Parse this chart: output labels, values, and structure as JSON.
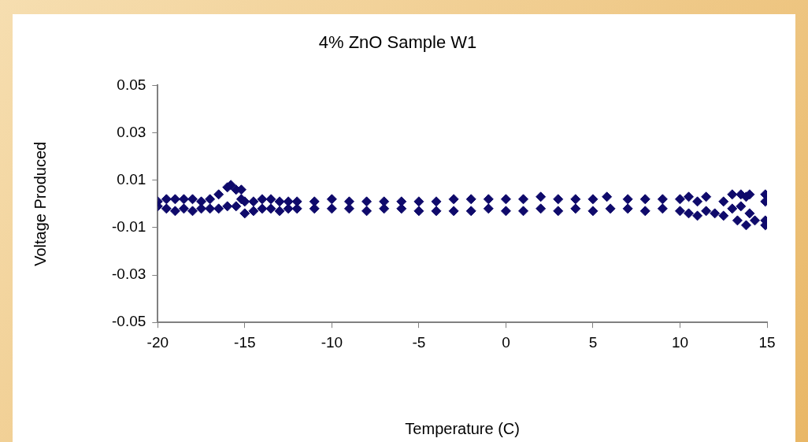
{
  "chart_data": {
    "type": "scatter",
    "title": "4% ZnO Sample W1",
    "xlabel": "Temperature (C)",
    "ylabel": "Voltage Produced",
    "xlim": [
      -20,
      15
    ],
    "xticks": [
      -20,
      -15,
      -10,
      -5,
      0,
      5,
      10,
      15
    ],
    "ylim": [
      -0.05,
      0.05
    ],
    "yticks": [
      -0.05,
      -0.03,
      -0.01,
      0.01,
      0.03,
      0.05
    ],
    "grid": false,
    "legend": false,
    "marker": "diamond",
    "series": [
      {
        "color": "#0f0a6b",
        "x": [
          -20,
          -20,
          -19.5,
          -19.5,
          -19,
          -19,
          -18.5,
          -18.5,
          -18,
          -18,
          -17.5,
          -17.5,
          -17,
          -17,
          -16.5,
          -16.5,
          -16,
          -16,
          -15.8,
          -15.5,
          -15.5,
          -15.2,
          -15.2,
          -15,
          -15,
          -14.5,
          -14.5,
          -14,
          -14,
          -13.5,
          -13.5,
          -13,
          -13,
          -12.5,
          -12.5,
          -12,
          -12,
          -11,
          -11,
          -10,
          -10,
          -9,
          -9,
          -8,
          -8,
          -7,
          -7,
          -6,
          -6,
          -5,
          -5,
          -4,
          -4,
          -3,
          -3,
          -2,
          -2,
          -1,
          -1,
          0,
          0,
          1,
          1,
          2,
          2,
          3,
          3,
          4,
          4,
          5,
          5,
          5.8,
          6,
          7,
          7,
          8,
          8,
          9,
          9,
          10,
          10,
          10.5,
          10.5,
          11,
          11,
          11.5,
          11.5,
          12,
          12.5,
          12.5,
          13,
          13,
          13.3,
          13.5,
          13.5,
          13.8,
          13.8,
          14,
          14,
          14.3,
          14.9,
          14.9,
          14.9,
          14.9
        ],
        "values": [
          0.001,
          -0.001,
          0.002,
          -0.002,
          0.002,
          -0.003,
          0.002,
          -0.002,
          0.002,
          -0.003,
          0.001,
          -0.002,
          0.002,
          -0.002,
          0.004,
          -0.002,
          0.007,
          -0.001,
          0.008,
          0.006,
          -0.001,
          0.006,
          0.002,
          0.001,
          -0.004,
          0.001,
          -0.003,
          0.002,
          -0.002,
          0.002,
          -0.002,
          0.001,
          -0.003,
          0.001,
          -0.002,
          0.001,
          -0.002,
          0.001,
          -0.002,
          0.002,
          -0.002,
          0.001,
          -0.002,
          0.001,
          -0.003,
          0.001,
          -0.002,
          0.001,
          -0.002,
          0.001,
          -0.003,
          0.001,
          -0.003,
          0.002,
          -0.003,
          0.002,
          -0.003,
          0.002,
          -0.002,
          0.002,
          -0.003,
          0.002,
          -0.003,
          0.003,
          -0.002,
          0.002,
          -0.003,
          0.002,
          -0.002,
          0.002,
          -0.003,
          0.003,
          -0.002,
          0.002,
          -0.002,
          0.002,
          -0.003,
          0.002,
          -0.002,
          0.002,
          -0.003,
          0.003,
          -0.004,
          0.001,
          -0.005,
          0.003,
          -0.003,
          -0.004,
          0.001,
          -0.005,
          0.004,
          -0.002,
          -0.007,
          0.004,
          -0.001,
          0.003,
          -0.009,
          0.004,
          -0.004,
          -0.007,
          0.004,
          0.001,
          -0.007,
          -0.009
        ]
      }
    ]
  }
}
